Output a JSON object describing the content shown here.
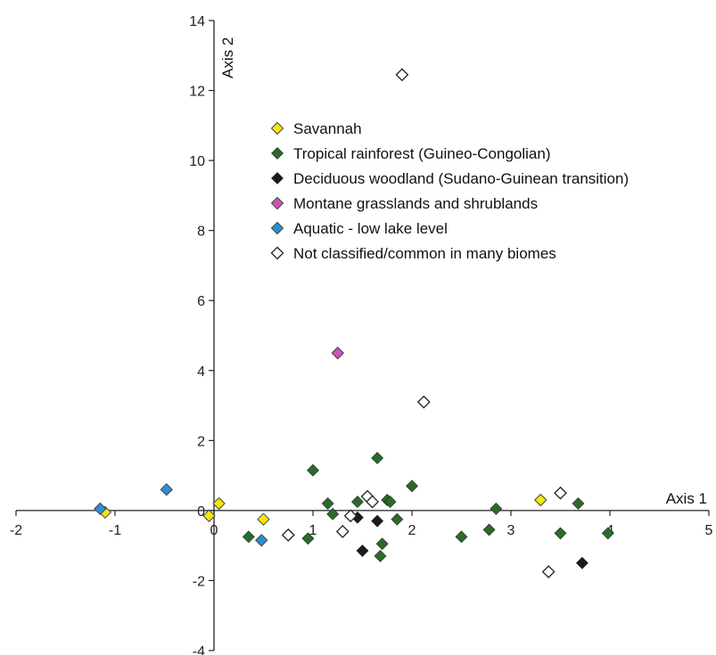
{
  "chart_data": {
    "type": "scatter",
    "xlabel": "Axis 1",
    "ylabel": "Axis 2",
    "xlim": [
      -2,
      5
    ],
    "ylim": [
      -4,
      14
    ],
    "xticks": [
      -2,
      -1,
      0,
      1,
      2,
      3,
      4,
      5
    ],
    "yticks": [
      -4,
      -2,
      0,
      2,
      4,
      6,
      8,
      10,
      12,
      14
    ],
    "grid": false,
    "legend_position": "top-center",
    "series": [
      {
        "name": "Savannah",
        "color": "#f5e60c",
        "marker": "diamond-filled",
        "points": [
          [
            -1.1,
            -0.05
          ],
          [
            -0.05,
            -0.15
          ],
          [
            0.05,
            0.2
          ],
          [
            0.5,
            -0.25
          ],
          [
            3.3,
            0.3
          ]
        ]
      },
      {
        "name": "Tropical rainforest (Guineo-Congolian)",
        "color": "#2a6b2a",
        "marker": "diamond-filled",
        "points": [
          [
            0.35,
            -0.75
          ],
          [
            0.95,
            -0.8
          ],
          [
            1.0,
            1.15
          ],
          [
            1.15,
            0.2
          ],
          [
            1.2,
            -0.1
          ],
          [
            1.45,
            0.25
          ],
          [
            1.65,
            1.5
          ],
          [
            1.7,
            -0.95
          ],
          [
            1.68,
            -1.3
          ],
          [
            1.75,
            0.3
          ],
          [
            1.78,
            0.25
          ],
          [
            1.85,
            -0.25
          ],
          [
            2.0,
            0.7
          ],
          [
            2.5,
            -0.75
          ],
          [
            2.78,
            -0.55
          ],
          [
            2.85,
            0.05
          ],
          [
            3.5,
            -0.65
          ],
          [
            3.68,
            0.2
          ],
          [
            3.98,
            -0.65
          ]
        ]
      },
      {
        "name": "Deciduous woodland (Sudano-Guinean transition)",
        "color": "#1a1a1a",
        "marker": "diamond-filled",
        "points": [
          [
            1.45,
            -0.2
          ],
          [
            1.5,
            -1.15
          ],
          [
            1.65,
            -0.3
          ],
          [
            3.72,
            -1.5
          ]
        ]
      },
      {
        "name": "Montane grasslands and shrublands",
        "color": "#cc55b5",
        "marker": "diamond-filled",
        "points": [
          [
            1.25,
            4.5
          ]
        ]
      },
      {
        "name": "Aquatic - low lake level",
        "color": "#2a8fd4",
        "marker": "diamond-filled",
        "points": [
          [
            -1.15,
            0.05
          ],
          [
            -0.48,
            0.6
          ],
          [
            0.48,
            -0.85
          ]
        ]
      },
      {
        "name": "Not classified/common in many biomes",
        "color": "#ffffff",
        "marker": "diamond-open",
        "points": [
          [
            1.9,
            12.45
          ],
          [
            2.12,
            3.1
          ],
          [
            0.75,
            -0.7
          ],
          [
            1.3,
            -0.6
          ],
          [
            1.38,
            -0.15
          ],
          [
            1.55,
            0.4
          ],
          [
            1.6,
            0.25
          ],
          [
            3.38,
            -1.75
          ],
          [
            3.5,
            0.5
          ]
        ]
      }
    ]
  }
}
